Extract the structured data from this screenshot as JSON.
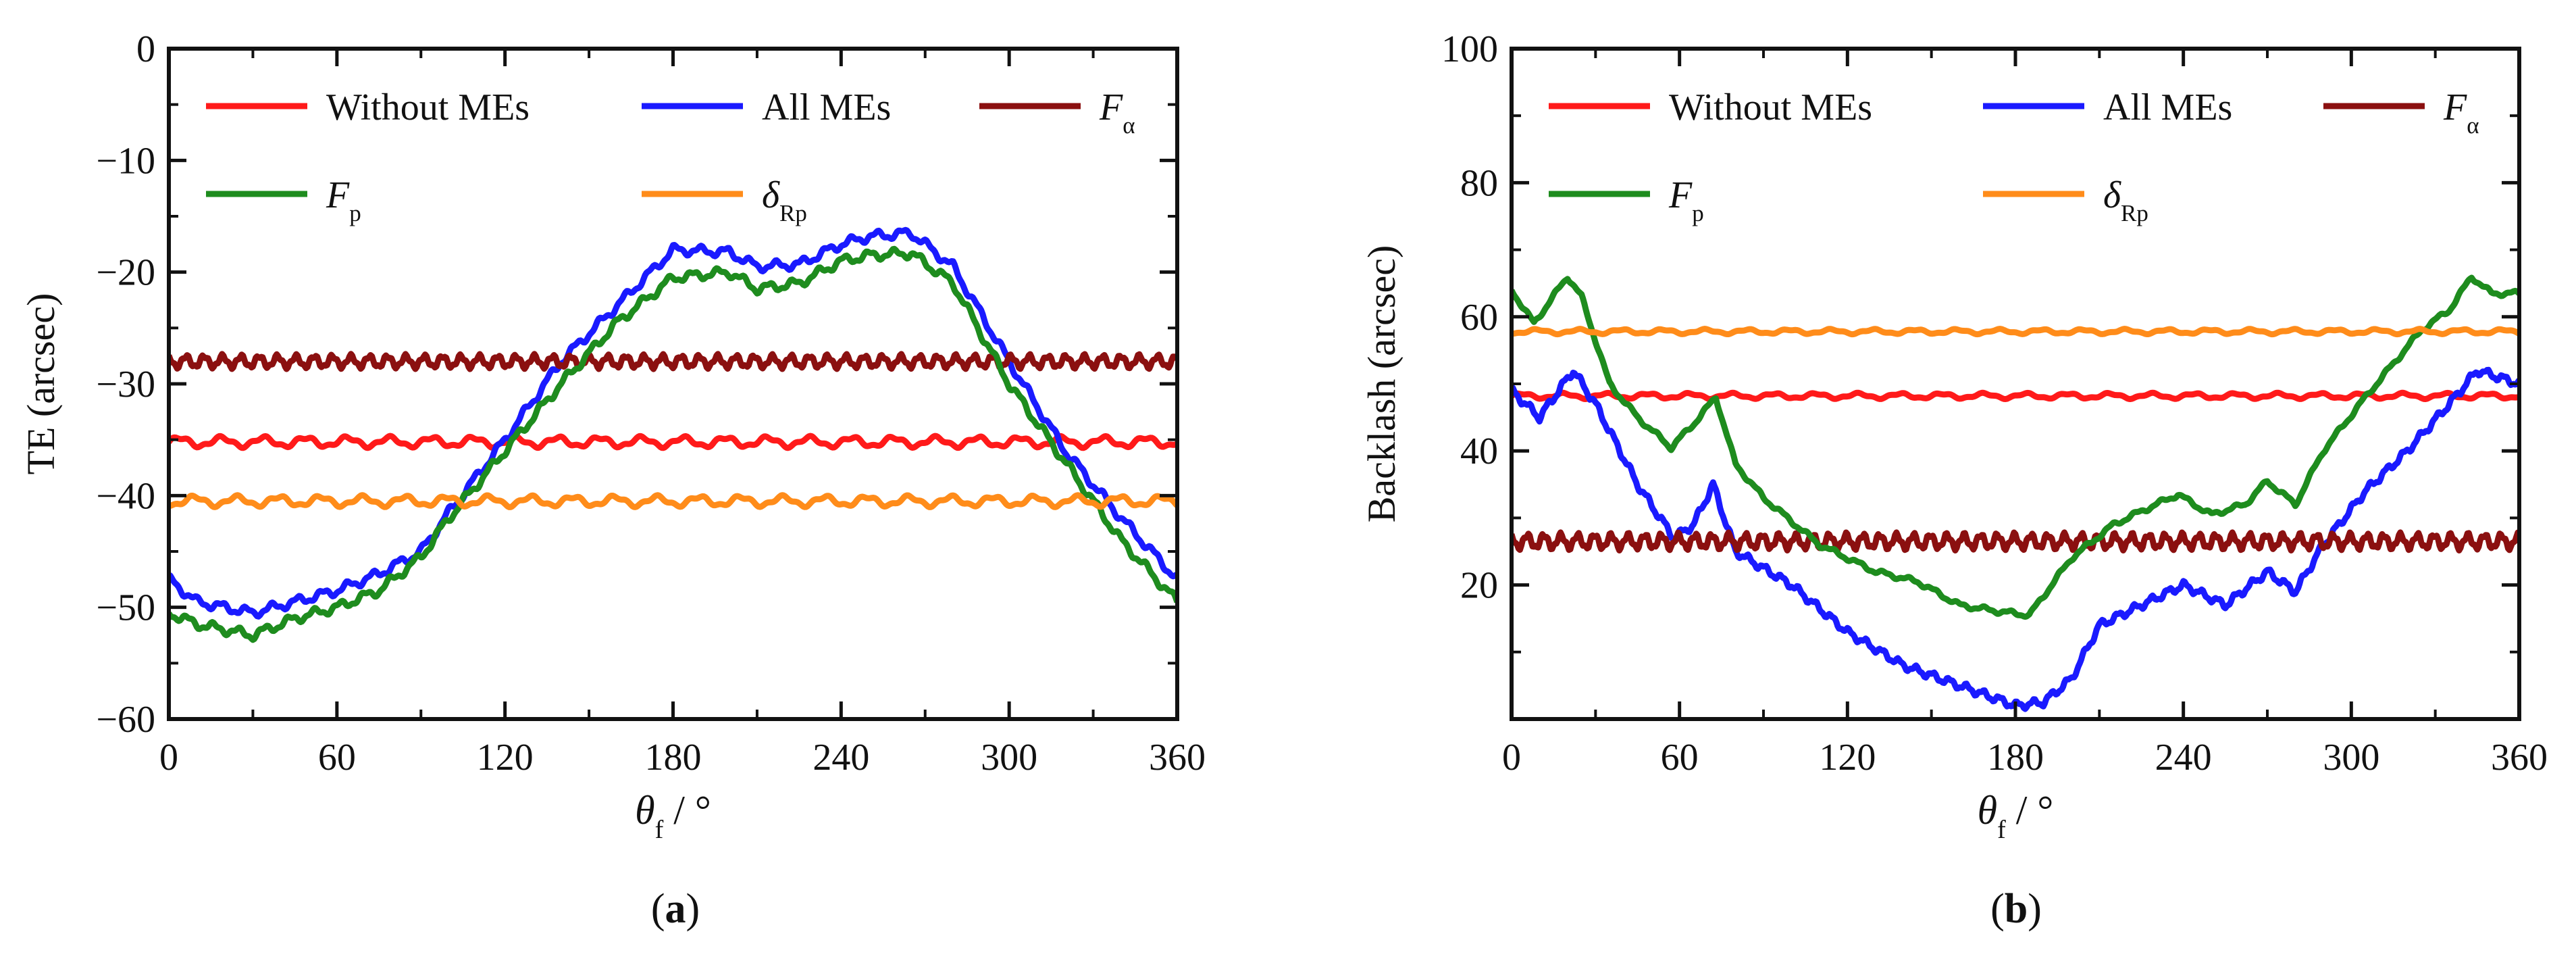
{
  "chart_data": [
    {
      "type": "line",
      "panel_label": "(a)",
      "xlabel": "θf / °",
      "ylabel": "TE (arcsec)",
      "xlim": [
        0,
        360
      ],
      "ylim": [
        -60,
        0
      ],
      "xticks": [
        0,
        60,
        120,
        180,
        240,
        300,
        360
      ],
      "yticks": [
        0,
        -10,
        -20,
        -30,
        -40,
        -50,
        -60
      ],
      "legend": "top, two rows",
      "series": [
        {
          "name": "Without MEs",
          "color": "#ff1a1a",
          "x": [
            0,
            60,
            120,
            180,
            240,
            300,
            360
          ],
          "values": [
            -35.2,
            -35.2,
            -35.2,
            -35.2,
            -35.2,
            -35.2,
            -35.2
          ],
          "ripple": 0.4,
          "cycles": 24
        },
        {
          "name": "All MEs",
          "color": "#1a1aff",
          "x": [
            0,
            10,
            30,
            45,
            60,
            75,
            90,
            100,
            120,
            140,
            160,
            180,
            200,
            210,
            225,
            240,
            250,
            265,
            280,
            300,
            320,
            340,
            360
          ],
          "values": [
            -47.5,
            -49.5,
            -50.5,
            -49.5,
            -48.5,
            -47,
            -45,
            -41.5,
            -35,
            -28,
            -23,
            -18,
            -18.2,
            -19.5,
            -19.3,
            -17.5,
            -16.8,
            -16.5,
            -19.5,
            -28,
            -36,
            -42,
            -47.5
          ],
          "ripple": 0.35,
          "cycles": 40
        },
        {
          "name": "Fα",
          "color": "#8b1010",
          "x": [
            0,
            60,
            120,
            180,
            240,
            300,
            360
          ],
          "values": [
            -28,
            -28,
            -28,
            -28,
            -28,
            -28,
            -28
          ],
          "ripple": 0.5,
          "cycles": 55
        },
        {
          "name": "Fp",
          "color": "#1e8c1e",
          "x": [
            0,
            10,
            30,
            45,
            60,
            75,
            90,
            100,
            120,
            140,
            160,
            180,
            200,
            210,
            225,
            240,
            250,
            265,
            280,
            300,
            320,
            340,
            360
          ],
          "values": [
            -50.5,
            -51.5,
            -52.5,
            -51,
            -50,
            -48.5,
            -45.5,
            -42,
            -36,
            -30,
            -24.5,
            -20.5,
            -20,
            -21.5,
            -21,
            -19,
            -18.5,
            -18.3,
            -21,
            -30,
            -37,
            -44,
            -49.5
          ],
          "ripple": 0.35,
          "cycles": 40
        },
        {
          "name": "δRp",
          "color": "#ff8c1a",
          "x": [
            0,
            60,
            120,
            180,
            240,
            300,
            360
          ],
          "values": [
            -40.5,
            -40.5,
            -40.5,
            -40.5,
            -40.5,
            -40.5,
            -40.5
          ],
          "ripple": 0.4,
          "cycles": 24
        }
      ]
    },
    {
      "type": "line",
      "panel_label": "(b)",
      "xlabel": "θf / °",
      "ylabel": "Backlash (arcsec)",
      "xlim": [
        0,
        360
      ],
      "ylim": [
        0,
        100
      ],
      "xticks": [
        0,
        60,
        120,
        180,
        240,
        300,
        360
      ],
      "yticks": [
        20,
        40,
        60,
        80,
        100
      ],
      "legend": "top, two rows",
      "series": [
        {
          "name": "Without MEs",
          "color": "#ff1a1a",
          "x": [
            0,
            60,
            120,
            180,
            240,
            300,
            360
          ],
          "values": [
            48.2,
            48.2,
            48.2,
            48.2,
            48.2,
            48.2,
            48.2
          ],
          "ripple": 0.35,
          "cycles": 24
        },
        {
          "name": "All MEs",
          "color": "#1a1aff",
          "x": [
            0,
            10,
            22,
            30,
            45,
            58,
            65,
            72,
            80,
            100,
            120,
            140,
            160,
            180,
            190,
            200,
            210,
            230,
            240,
            255,
            270,
            280,
            290,
            305,
            320,
            335,
            345,
            360
          ],
          "values": [
            49,
            45,
            52,
            47,
            35,
            27,
            29,
            35,
            25,
            20,
            13,
            8,
            5,
            2,
            2.5,
            6,
            14,
            18,
            20,
            17,
            22,
            19,
            26,
            34,
            40,
            47,
            52,
            50
          ],
          "ripple": 0.5,
          "cycles": 60
        },
        {
          "name": "Fα",
          "color": "#8b1010",
          "x": [
            0,
            60,
            120,
            180,
            240,
            300,
            360
          ],
          "values": [
            26.5,
            26.5,
            26.5,
            26.5,
            26.5,
            26.5,
            26.5
          ],
          "ripple": 1.0,
          "cycles": 60
        },
        {
          "name": "Fp",
          "color": "#1e8c1e",
          "x": [
            0,
            8,
            20,
            25,
            35,
            45,
            57,
            65,
            73,
            80,
            90,
            110,
            130,
            145,
            160,
            175,
            185,
            200,
            215,
            225,
            238,
            250,
            262,
            270,
            280,
            290,
            305,
            325,
            335,
            343,
            350,
            360
          ],
          "values": [
            64,
            59,
            66,
            63,
            50,
            45,
            40.5,
            44,
            48,
            38,
            33,
            26,
            22,
            20.5,
            17,
            16,
            15.5,
            24,
            29,
            31,
            33.5,
            30.5,
            32,
            35.5,
            32,
            40,
            48,
            58,
            61,
            66,
            63.5,
            63.5
          ],
          "ripple": 0.3,
          "cycles": 40
        },
        {
          "name": "δRp",
          "color": "#ff8c1a",
          "x": [
            0,
            60,
            120,
            180,
            240,
            300,
            360
          ],
          "values": [
            57.8,
            57.8,
            57.8,
            57.8,
            57.8,
            57.8,
            57.8
          ],
          "ripple": 0.3,
          "cycles": 24
        }
      ]
    }
  ]
}
